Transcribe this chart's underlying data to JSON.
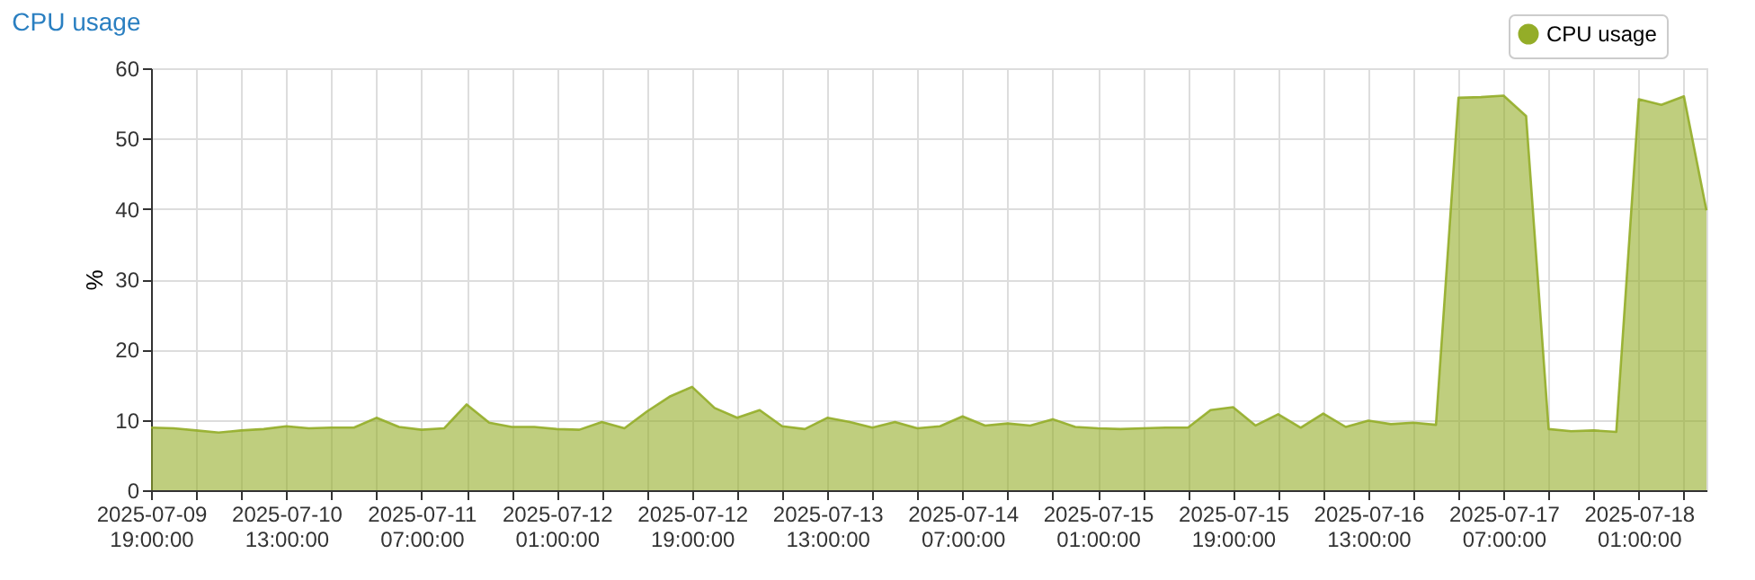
{
  "chart_data": {
    "type": "area",
    "title": "CPU usage",
    "ylabel": "%",
    "legend": "top right",
    "grid": true,
    "marker": "none",
    "xlim": [
      "2025-07-09T19:00",
      "2025-07-18T10:00"
    ],
    "xticks": [
      {
        "value": "2025-07-09T19:00",
        "label": "2025-07-09 19:00:00"
      },
      {
        "value": "2025-07-10T01:00",
        "label": null
      },
      {
        "value": "2025-07-10T07:00",
        "label": null
      },
      {
        "value": "2025-07-10T13:00",
        "label": "2025-07-10 13:00:00"
      },
      {
        "value": "2025-07-10T19:00",
        "label": null
      },
      {
        "value": "2025-07-11T01:00",
        "label": null
      },
      {
        "value": "2025-07-11T07:00",
        "label": "2025-07-11 07:00:00"
      },
      {
        "value": "2025-07-11T13:00",
        "label": null
      },
      {
        "value": "2025-07-11T19:00",
        "label": null
      },
      {
        "value": "2025-07-12T01:00",
        "label": "2025-07-12 01:00:00"
      },
      {
        "value": "2025-07-12T07:00",
        "label": null
      },
      {
        "value": "2025-07-12T13:00",
        "label": null
      },
      {
        "value": "2025-07-12T19:00",
        "label": "2025-07-12 19:00:00"
      },
      {
        "value": "2025-07-13T01:00",
        "label": null
      },
      {
        "value": "2025-07-13T07:00",
        "label": null
      },
      {
        "value": "2025-07-13T13:00",
        "label": "2025-07-13 13:00:00"
      },
      {
        "value": "2025-07-13T19:00",
        "label": null
      },
      {
        "value": "2025-07-14T01:00",
        "label": null
      },
      {
        "value": "2025-07-14T07:00",
        "label": "2025-07-14 07:00:00"
      },
      {
        "value": "2025-07-14T13:00",
        "label": null
      },
      {
        "value": "2025-07-14T19:00",
        "label": null
      },
      {
        "value": "2025-07-15T01:00",
        "label": "2025-07-15 01:00:00"
      },
      {
        "value": "2025-07-15T07:00",
        "label": null
      },
      {
        "value": "2025-07-15T13:00",
        "label": null
      },
      {
        "value": "2025-07-15T19:00",
        "label": "2025-07-15 19:00:00"
      },
      {
        "value": "2025-07-16T01:00",
        "label": null
      },
      {
        "value": "2025-07-16T07:00",
        "label": null
      },
      {
        "value": "2025-07-16T13:00",
        "label": "2025-07-16 13:00:00"
      },
      {
        "value": "2025-07-16T19:00",
        "label": null
      },
      {
        "value": "2025-07-17T01:00",
        "label": null
      },
      {
        "value": "2025-07-17T07:00",
        "label": "2025-07-17 07:00:00"
      },
      {
        "value": "2025-07-17T13:00",
        "label": null
      },
      {
        "value": "2025-07-17T19:00",
        "label": null
      },
      {
        "value": "2025-07-18T01:00",
        "label": "2025-07-18 01:00:00"
      },
      {
        "value": "2025-07-18T07:00",
        "label": null
      }
    ],
    "ylim": [
      0,
      60
    ],
    "yticks": [
      0,
      10,
      20,
      30,
      40,
      50,
      60
    ],
    "series": [
      {
        "name": "CPU usage",
        "color": "#94ad28",
        "x": [
          "2025-07-09T19:00",
          "2025-07-09T22:00",
          "2025-07-10T01:00",
          "2025-07-10T04:00",
          "2025-07-10T07:00",
          "2025-07-10T10:00",
          "2025-07-10T13:00",
          "2025-07-10T16:00",
          "2025-07-10T19:00",
          "2025-07-10T22:00",
          "2025-07-11T01:00",
          "2025-07-11T04:00",
          "2025-07-11T07:00",
          "2025-07-11T10:00",
          "2025-07-11T13:00",
          "2025-07-11T16:00",
          "2025-07-11T19:00",
          "2025-07-11T22:00",
          "2025-07-12T01:00",
          "2025-07-12T04:00",
          "2025-07-12T07:00",
          "2025-07-12T10:00",
          "2025-07-12T13:00",
          "2025-07-12T16:00",
          "2025-07-12T19:00",
          "2025-07-12T22:00",
          "2025-07-13T01:00",
          "2025-07-13T04:00",
          "2025-07-13T07:00",
          "2025-07-13T10:00",
          "2025-07-13T13:00",
          "2025-07-13T16:00",
          "2025-07-13T19:00",
          "2025-07-13T22:00",
          "2025-07-14T01:00",
          "2025-07-14T04:00",
          "2025-07-14T07:00",
          "2025-07-14T10:00",
          "2025-07-14T13:00",
          "2025-07-14T16:00",
          "2025-07-14T19:00",
          "2025-07-14T22:00",
          "2025-07-15T01:00",
          "2025-07-15T04:00",
          "2025-07-15T07:00",
          "2025-07-15T10:00",
          "2025-07-15T13:00",
          "2025-07-15T16:00",
          "2025-07-15T19:00",
          "2025-07-15T22:00",
          "2025-07-16T01:00",
          "2025-07-16T04:00",
          "2025-07-16T07:00",
          "2025-07-16T10:00",
          "2025-07-16T13:00",
          "2025-07-16T16:00",
          "2025-07-16T19:00",
          "2025-07-16T22:00",
          "2025-07-17T01:00",
          "2025-07-17T04:00",
          "2025-07-17T07:00",
          "2025-07-17T10:00",
          "2025-07-17T13:00",
          "2025-07-17T16:00",
          "2025-07-17T19:00",
          "2025-07-17T22:00",
          "2025-07-18T01:00",
          "2025-07-18T04:00",
          "2025-07-18T07:00",
          "2025-07-18T10:00"
        ],
        "values": [
          8.9,
          8.8,
          8.5,
          8.2,
          8.5,
          8.7,
          9.1,
          8.8,
          8.9,
          8.9,
          10.3,
          9.0,
          8.6,
          8.8,
          12.2,
          9.6,
          9.0,
          9.0,
          8.7,
          8.6,
          9.7,
          8.8,
          11.2,
          13.3,
          14.7,
          11.7,
          10.3,
          11.4,
          9.1,
          8.7,
          10.3,
          9.7,
          8.9,
          9.7,
          8.8,
          9.1,
          10.5,
          9.2,
          9.5,
          9.2,
          10.1,
          9.0,
          8.8,
          8.7,
          8.8,
          8.9,
          8.9,
          11.4,
          11.8,
          9.2,
          10.8,
          8.9,
          10.9,
          9.0,
          9.9,
          9.4,
          9.6,
          9.3,
          55.8,
          55.9,
          56.1,
          53.2,
          8.7,
          8.4,
          8.5,
          8.3,
          55.6,
          54.8,
          56.0,
          39.8
        ]
      }
    ]
  }
}
